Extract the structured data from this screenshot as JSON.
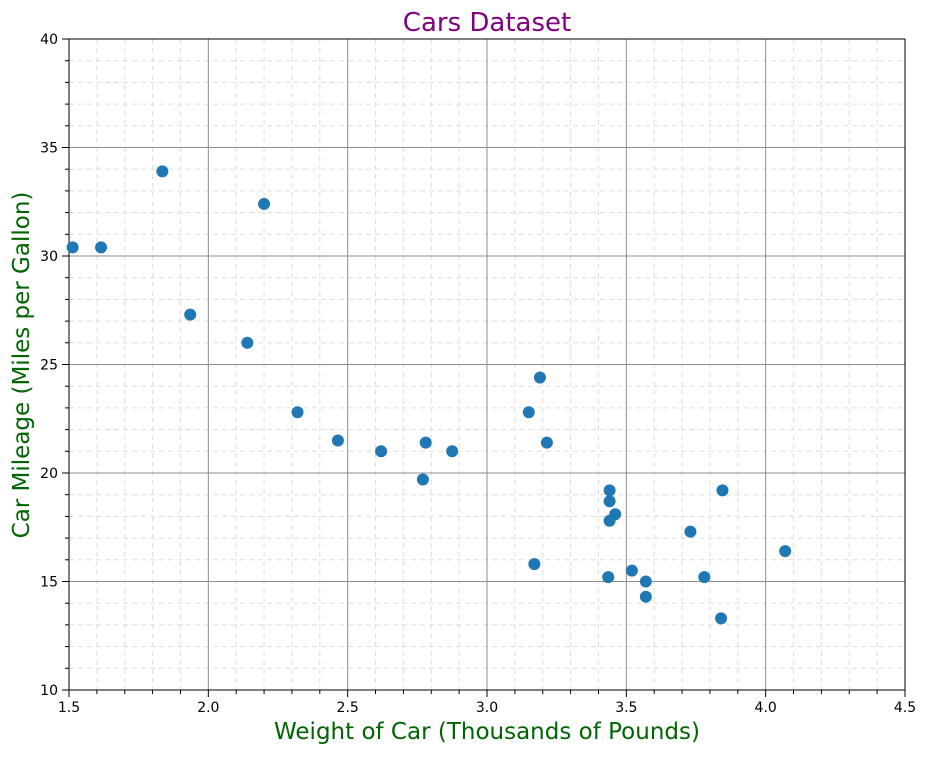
{
  "chart_data": {
    "type": "scatter",
    "title": "Cars Dataset",
    "xlabel": "Weight of Car (Thousands of Pounds)",
    "ylabel": "Car Mileage (Miles per Gallon)",
    "xlim": [
      1.5,
      4.5
    ],
    "ylim": [
      10,
      40
    ],
    "x_ticks": [
      "1.5",
      "2.0",
      "2.5",
      "3.0",
      "3.5",
      "4.0",
      "4.5"
    ],
    "y_ticks": [
      "10",
      "15",
      "20",
      "25",
      "30",
      "35",
      "40"
    ],
    "grid": {
      "major": true,
      "minor": true
    },
    "colors": {
      "title": "#800080",
      "axis_labels": "#006400",
      "points": "#1f77b4",
      "major_grid": "#8c8c8c",
      "minor_grid": "#dddddd"
    },
    "points": [
      {
        "x": 1.513,
        "y": 30.4
      },
      {
        "x": 1.615,
        "y": 30.4
      },
      {
        "x": 1.835,
        "y": 33.9
      },
      {
        "x": 1.935,
        "y": 27.3
      },
      {
        "x": 2.14,
        "y": 26.0
      },
      {
        "x": 2.2,
        "y": 32.4
      },
      {
        "x": 2.32,
        "y": 22.8
      },
      {
        "x": 2.465,
        "y": 21.5
      },
      {
        "x": 2.62,
        "y": 21.0
      },
      {
        "x": 2.77,
        "y": 19.7
      },
      {
        "x": 2.78,
        "y": 21.4
      },
      {
        "x": 2.875,
        "y": 21.0
      },
      {
        "x": 3.15,
        "y": 22.8
      },
      {
        "x": 3.17,
        "y": 15.8
      },
      {
        "x": 3.19,
        "y": 24.4
      },
      {
        "x": 3.215,
        "y": 21.4
      },
      {
        "x": 3.435,
        "y": 15.2
      },
      {
        "x": 3.44,
        "y": 18.7
      },
      {
        "x": 3.44,
        "y": 19.2
      },
      {
        "x": 3.44,
        "y": 17.8
      },
      {
        "x": 3.46,
        "y": 18.1
      },
      {
        "x": 3.52,
        "y": 15.5
      },
      {
        "x": 3.57,
        "y": 15.0
      },
      {
        "x": 3.57,
        "y": 14.3
      },
      {
        "x": 3.73,
        "y": 17.3
      },
      {
        "x": 3.78,
        "y": 15.2
      },
      {
        "x": 3.84,
        "y": 13.3
      },
      {
        "x": 3.845,
        "y": 19.2
      },
      {
        "x": 4.07,
        "y": 16.4
      }
    ]
  }
}
